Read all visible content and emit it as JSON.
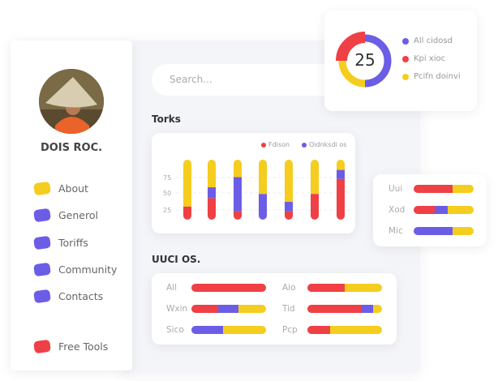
{
  "colors": {
    "red": "#ee4045",
    "purple": "#6c5de6",
    "yellow": "#f5cd1e"
  },
  "profile": {
    "name": "DOIS ROC."
  },
  "nav": [
    {
      "label": "About",
      "color": "#f5cd1e"
    },
    {
      "label": "Generol",
      "color": "#6c5de6"
    },
    {
      "label": "Toriffs",
      "color": "#6c5de6"
    },
    {
      "label": "Community",
      "color": "#6c5de6"
    },
    {
      "label": "Contacts",
      "color": "#6c5de6"
    },
    {
      "label": "Free Tools",
      "color": "#ee4045"
    }
  ],
  "search": {
    "placeholder": "Search..."
  },
  "torks": {
    "title": "Torks"
  },
  "uuci": {
    "title": "UUCI OS."
  },
  "chart_data": [
    {
      "type": "bar",
      "stacked": true,
      "ylim": [
        0,
        100
      ],
      "yticks": [
        25,
        50,
        75
      ],
      "grid": true,
      "legend": "top-right",
      "series": [
        {
          "name": "Fdison",
          "color": "#ee4045",
          "values": [
            22,
            36,
            14,
            0,
            14,
            43,
            68
          ]
        },
        {
          "name": "Oidnksdi os",
          "color": "#6c5de6",
          "values": [
            0,
            18,
            57,
            43,
            16,
            0,
            15
          ]
        },
        {
          "color": "#f5cd1e",
          "values": [
            78,
            46,
            29,
            57,
            70,
            57,
            17
          ]
        }
      ]
    },
    {
      "type": "pie",
      "donut": true,
      "center_label": "25",
      "slices": [
        {
          "name": "All cidosd",
          "value": 50,
          "color": "#6c5de6"
        },
        {
          "name": "Kpi xioc",
          "value": 25,
          "color": "#ee4045"
        },
        {
          "name": "Pcifn doinvi",
          "value": 25,
          "color": "#f5cd1e"
        }
      ]
    },
    {
      "type": "bar",
      "orientation": "horizontal",
      "stacked": true,
      "rows": [
        {
          "label": "Uui",
          "values": [
            65,
            0,
            35
          ]
        },
        {
          "label": "Xod",
          "values": [
            35,
            22,
            43
          ]
        },
        {
          "label": "Mic",
          "values": [
            0,
            65,
            35
          ]
        }
      ]
    },
    {
      "type": "bar",
      "orientation": "horizontal",
      "stacked": true,
      "rows": [
        {
          "label": "All",
          "values": [
            100,
            0,
            0
          ]
        },
        {
          "label": "Wxin",
          "values": [
            36,
            27,
            37
          ]
        },
        {
          "label": "Sico",
          "values": [
            0,
            42,
            58
          ]
        },
        {
          "label": "Aio",
          "values": [
            50,
            0,
            50
          ]
        },
        {
          "label": "Tid",
          "values": [
            73,
            15,
            12
          ]
        },
        {
          "label": "Pcp",
          "values": [
            30,
            0,
            70
          ]
        }
      ]
    }
  ]
}
